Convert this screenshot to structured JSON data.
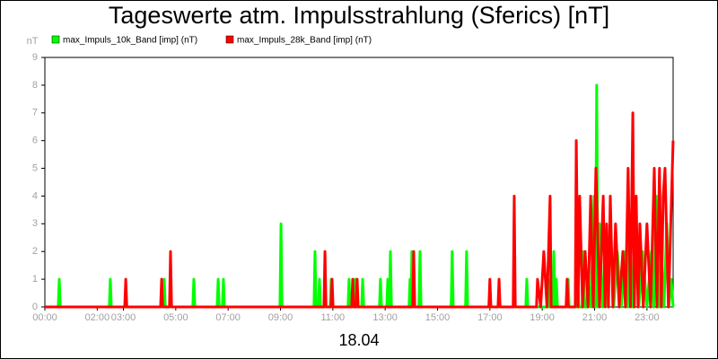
{
  "chart_data": {
    "type": "line",
    "title": "Tageswerte atm. Impulsstrahlung (Sferics) [nT]",
    "y_unit": "nT",
    "x_label": "18.04",
    "legend": "top-left",
    "grid": false,
    "xlim": [
      0,
      24
    ],
    "ylim": [
      0,
      9
    ],
    "yticks": [
      0,
      1,
      2,
      3,
      4,
      5,
      6,
      7,
      8,
      9
    ],
    "xticks": [
      {
        "value": 0,
        "label": "00:00"
      },
      {
        "value": 2,
        "label": "02:00"
      },
      {
        "value": 3,
        "label": "03:00"
      },
      {
        "value": 5,
        "label": "05:00"
      },
      {
        "value": 7,
        "label": "07:00"
      },
      {
        "value": 9,
        "label": "09:00"
      },
      {
        "value": 11,
        "label": "11:00"
      },
      {
        "value": 13,
        "label": "13:00"
      },
      {
        "value": 15,
        "label": "15:00"
      },
      {
        "value": 17,
        "label": "17:00"
      },
      {
        "value": 19,
        "label": "19:00"
      },
      {
        "value": 21,
        "label": "21:00"
      },
      {
        "value": 23,
        "label": "23:00"
      }
    ],
    "series": [
      {
        "name": "max_Impuls_10k_Band [imp] (nT)",
        "color": "#00ff00",
        "x": [
          0,
          0.51,
          0.55,
          0.59,
          2.46,
          2.5,
          2.54,
          4.52,
          4.56,
          4.6,
          5.65,
          5.69,
          5.73,
          6.58,
          6.62,
          6.66,
          6.78,
          6.82,
          6.86,
          8.98,
          9.02,
          9.06,
          10.28,
          10.32,
          10.36,
          10.45,
          10.49,
          10.53,
          10.9,
          10.94,
          10.98,
          11.58,
          11.62,
          11.66,
          11.82,
          11.86,
          11.9,
          12.1,
          12.14,
          12.18,
          12.78,
          12.82,
          12.86,
          13.06,
          13.1,
          13.14,
          13.16,
          13.2,
          13.24,
          13.91,
          13.95,
          13.985,
          14.02,
          14.06,
          14.29,
          14.33,
          14.37,
          15.52,
          15.56,
          15.6,
          16.07,
          16.11,
          16.15,
          18.37,
          18.41,
          18.45,
          19.19,
          19.23,
          19.27,
          19.4,
          19.44,
          19.49,
          19.54,
          19.58,
          19.95,
          19.99,
          20.03,
          20.32,
          20.36,
          20.4,
          20.53,
          20.57,
          20.61,
          20.7,
          20.74,
          20.86,
          20.98,
          21.03,
          21.08,
          21.13,
          21.19,
          21.31,
          21.43,
          21.51,
          21.6,
          21.73,
          21.87,
          22.02,
          22.18,
          22.26,
          22.35,
          22.45,
          22.56,
          22.69,
          22.83,
          23.0,
          23.17,
          23.26,
          23.35,
          23.45,
          23.55,
          23.65,
          23.76,
          23.84,
          23.93,
          24
        ],
        "values": [
          0,
          0,
          1,
          0,
          0,
          1,
          0,
          0,
          1,
          0,
          0,
          1,
          0,
          0,
          1,
          0,
          0,
          1,
          0,
          0,
          3,
          0,
          0,
          2,
          0,
          0,
          1,
          0,
          0,
          1,
          0,
          0,
          1,
          0,
          0,
          1,
          0,
          0,
          1,
          0,
          0,
          1,
          0,
          0,
          1,
          0,
          0,
          2,
          0,
          0,
          1,
          0,
          2,
          0,
          0,
          2,
          0,
          0,
          2,
          0,
          0,
          2,
          0,
          0,
          1,
          0,
          0,
          1,
          0,
          0,
          2,
          0,
          1,
          0,
          0,
          1,
          0,
          0,
          1,
          0,
          0,
          2,
          0,
          0,
          1,
          0,
          4,
          0,
          8,
          0,
          3,
          0,
          2,
          0,
          3,
          0,
          2,
          0,
          2,
          0,
          3,
          0,
          2,
          0,
          2,
          0,
          2,
          0,
          4,
          0,
          2,
          0,
          3,
          0,
          1,
          0
        ]
      },
      {
        "name": "max_Impuls_28k_Band [imp] (nT)",
        "color": "#ff0000",
        "x": [
          0,
          3.05,
          3.09,
          3.13,
          4.42,
          4.46,
          4.5,
          4.76,
          4.8,
          4.84,
          10.66,
          10.7,
          10.74,
          10.93,
          10.97,
          11.01,
          11.72,
          11.76,
          11.8,
          11.89,
          11.93,
          11.97,
          14.05,
          14.09,
          14.13,
          16.96,
          17.0,
          17.04,
          17.31,
          17.35,
          17.39,
          17.89,
          17.93,
          17.97,
          18.78,
          18.82,
          18.94,
          19.06,
          19.18,
          19.3,
          19.34,
          19.91,
          19.95,
          19.99,
          20.26,
          20.3,
          20.37,
          20.43,
          20.54,
          20.64,
          20.75,
          20.85,
          20.95,
          21.05,
          21.19,
          21.33,
          21.4,
          21.46,
          21.53,
          21.6,
          21.7,
          21.8,
          21.94,
          22.08,
          22.18,
          22.28,
          22.37,
          22.46,
          22.52,
          22.59,
          22.66,
          22.73,
          22.86,
          23.0,
          23.14,
          23.28,
          23.38,
          23.48,
          23.55,
          23.62,
          23.69,
          23.82,
          24
        ],
        "values": [
          0,
          0,
          1,
          0,
          0,
          1,
          0,
          0,
          2,
          0,
          0,
          2,
          0,
          0,
          1,
          0,
          0,
          1,
          0,
          0,
          1,
          0,
          0,
          2,
          0,
          0,
          1,
          0,
          0,
          1,
          0,
          0,
          4,
          0,
          0,
          1,
          0,
          2,
          0,
          4,
          0,
          0,
          1,
          0,
          0,
          6,
          0,
          4,
          0,
          2,
          0,
          4,
          0,
          5,
          0,
          4,
          0,
          3,
          0,
          4,
          0,
          3,
          0,
          2,
          0,
          5,
          0,
          7,
          0,
          4,
          0,
          3,
          0,
          3,
          0,
          5,
          0,
          5,
          0,
          4,
          5,
          0,
          6
        ]
      }
    ]
  }
}
